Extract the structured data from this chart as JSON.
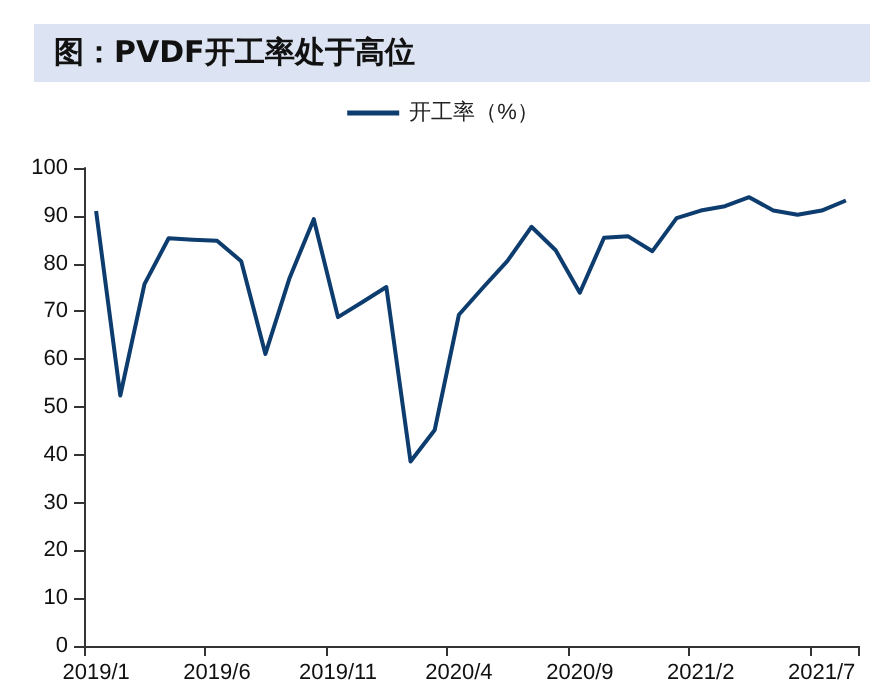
{
  "chart_data": {
    "type": "line",
    "title": "图：PVDF开工率处于高位",
    "categories": [
      "2019/1",
      null,
      null,
      null,
      null,
      "2019/6",
      null,
      null,
      null,
      null,
      "2019/11",
      null,
      null,
      null,
      null,
      "2020/4",
      null,
      null,
      null,
      null,
      "2020/9",
      null,
      null,
      null,
      null,
      "2021/2",
      null,
      null,
      null,
      null,
      "2021/7",
      null
    ],
    "series": [
      {
        "name": "开工率（%）",
        "color": "#0d3c6e",
        "values": [
          91,
          52.4,
          75.7,
          85.3,
          85,
          84.8,
          80.5,
          61.1,
          77,
          89.3,
          68.8,
          71.9,
          75.1,
          38.6,
          45.2,
          69.3,
          75,
          80.5,
          87.7,
          82.8,
          73.9,
          85.4,
          85.7,
          82.6,
          89.5,
          91.1,
          92,
          93.9,
          91.1,
          90.2,
          91.1,
          93.2
        ]
      }
    ],
    "ylim": [
      0,
      100
    ],
    "yticks": [
      0,
      10,
      20,
      30,
      40,
      50,
      60,
      70,
      80,
      90,
      100
    ],
    "grid": false,
    "legend": "top",
    "marker": "none",
    "line_style": "solid"
  }
}
